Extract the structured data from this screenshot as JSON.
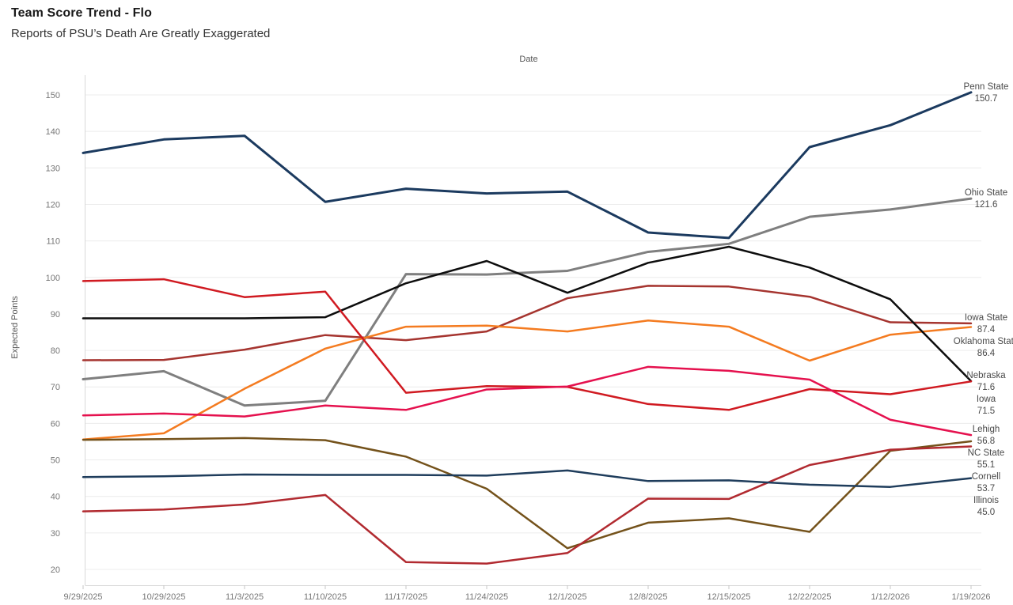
{
  "header": {
    "title": "Team Score Trend - Flo",
    "subtitle": "Reports of PSU’s Death Are Greatly Exaggerated"
  },
  "chart_data": {
    "type": "line",
    "x_title": "Date",
    "y_title": "Expected Points",
    "grid": true,
    "legend_position": "right-end-labels",
    "x": [
      "9/29/2025",
      "10/29/2025",
      "11/3/2025",
      "11/10/2025",
      "11/17/2025",
      "11/24/2025",
      "12/1/2025",
      "12/8/2025",
      "12/15/2025",
      "12/22/2025",
      "1/12/2026",
      "1/19/2026"
    ],
    "y_axis": {
      "min": 20,
      "max": 150,
      "tick_step": 10,
      "ticks": [
        20,
        30,
        40,
        50,
        60,
        70,
        80,
        90,
        100,
        110,
        120,
        130,
        140,
        150
      ]
    },
    "series": [
      {
        "name": "Penn State",
        "end_label": "150.7",
        "color": "#1b3a5f",
        "width": 3,
        "values": [
          134.1,
          137.8,
          138.8,
          120.7,
          124.3,
          123.0,
          123.5,
          112.3,
          110.8,
          135.7,
          141.7,
          150.7
        ]
      },
      {
        "name": "Ohio State",
        "end_label": "121.6",
        "color": "#7f7f7f",
        "width": 3,
        "values": [
          72.1,
          74.3,
          64.9,
          66.2,
          100.9,
          100.8,
          101.8,
          107.0,
          109.2,
          116.6,
          118.6,
          121.6
        ]
      },
      {
        "name": "Iowa State",
        "end_label": "87.4",
        "color": "#a5342f",
        "width": 2.5,
        "values": [
          77.3,
          77.4,
          80.2,
          84.2,
          82.8,
          85.2,
          94.3,
          97.7,
          97.5,
          94.7,
          87.7,
          87.4
        ]
      },
      {
        "name": "Oklahoma State",
        "end_label": "86.4",
        "color": "#f47b20",
        "width": 2.5,
        "values": [
          55.6,
          57.3,
          69.5,
          80.5,
          86.5,
          86.8,
          85.2,
          88.2,
          86.5,
          77.2,
          84.3,
          86.4
        ]
      },
      {
        "name": "Nebraska",
        "end_label": "71.6",
        "color": "#0d0d0d",
        "width": 2.5,
        "values": [
          88.8,
          88.8,
          88.8,
          89.1,
          98.4,
          104.5,
          95.8,
          104.0,
          108.4,
          102.7,
          94.0,
          71.6
        ]
      },
      {
        "name": "Iowa",
        "end_label": "71.5",
        "color": "#d01a21",
        "width": 2.5,
        "values": [
          99.0,
          99.5,
          94.6,
          96.1,
          68.4,
          70.2,
          70.0,
          65.3,
          63.7,
          69.4,
          68.0,
          71.5
        ]
      },
      {
        "name": "Lehigh",
        "end_label": "56.8",
        "color": "#e5114e",
        "width": 2.5,
        "values": [
          62.2,
          62.7,
          61.9,
          64.9,
          63.7,
          69.3,
          70.1,
          75.5,
          74.4,
          72.0,
          61.0,
          56.8
        ]
      },
      {
        "name": "NC State",
        "end_label": "55.1",
        "color": "#74521b",
        "width": 2.5,
        "values": [
          55.5,
          55.7,
          56.0,
          55.4,
          50.9,
          42.1,
          25.8,
          32.8,
          34.0,
          30.3,
          52.5,
          55.1
        ]
      },
      {
        "name": "Cornell",
        "end_label": "53.7",
        "color": "#b12a30",
        "width": 2.5,
        "values": [
          35.9,
          36.4,
          37.8,
          40.4,
          22.0,
          21.6,
          24.5,
          39.4,
          39.3,
          48.6,
          52.8,
          53.7
        ]
      },
      {
        "name": "Illinois",
        "end_label": "45.0",
        "color": "#1f3d5c",
        "width": 2.5,
        "values": [
          45.3,
          45.5,
          46.0,
          45.9,
          45.9,
          45.7,
          47.1,
          44.2,
          44.4,
          43.2,
          42.6,
          45.0
        ]
      }
    ],
    "colors": {
      "gridline": "#ececec",
      "axis_line": "#d9d9d9",
      "tick": "#c7c7c7",
      "axis_text": "#767676",
      "end_label_text": "#4a4a4a"
    }
  }
}
